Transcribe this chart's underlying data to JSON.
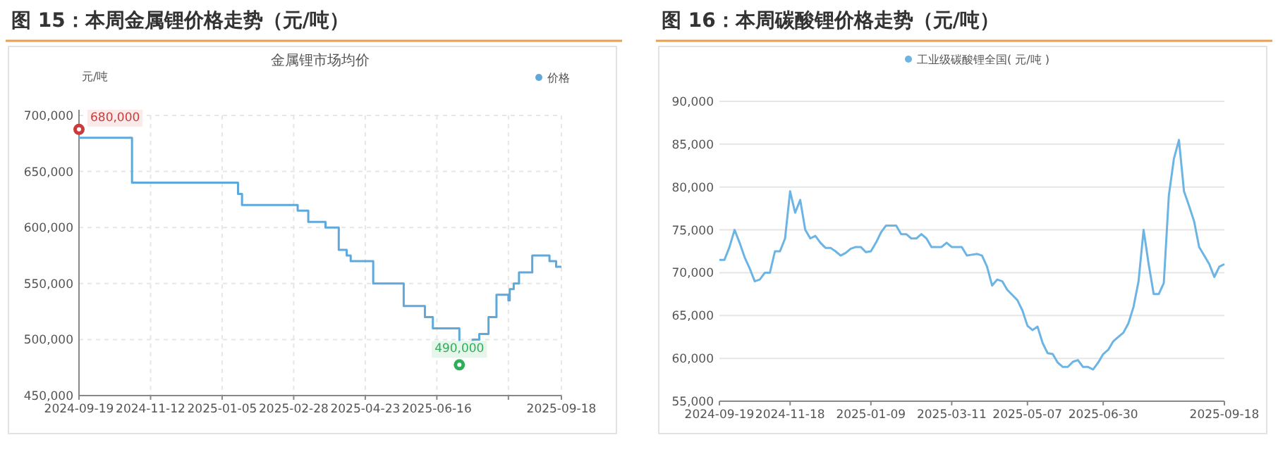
{
  "chart_data": [
    {
      "type": "step",
      "title": "图 15：本周金属锂价格走势（元/吨）",
      "subtitle": "金属锂市场均价",
      "ylabel": "元/吨",
      "legend": "top right",
      "grid": true,
      "xlim": [
        "2024-09-19",
        "2025-09-18"
      ],
      "xticks": [
        "2024-09-19",
        "2024-11-12",
        "2025-01-05",
        "2025-02-28",
        "2025-04-23",
        "2025-06-16",
        {
          "value": "2025-08-09",
          "label": null
        },
        "2025-09-18"
      ],
      "ylim": [
        450000,
        700000
      ],
      "yticks": [
        {
          "value": 450000,
          "label": "450,000"
        },
        {
          "value": 500000,
          "label": "500,000"
        },
        {
          "value": 550000,
          "label": "550,000"
        },
        {
          "value": 600000,
          "label": "600,000"
        },
        {
          "value": 650000,
          "label": "650,000"
        },
        {
          "value": 700000,
          "label": "700,000"
        }
      ],
      "annotations": [
        {
          "text": "680,000",
          "x": "2024-09-19",
          "y": 680000
        },
        {
          "text": "490,000",
          "x": "2025-07-03",
          "y": 490000
        }
      ],
      "series": [
        {
          "name": "价格",
          "color": "#5fa8dc",
          "x": [
            "2024-09-19",
            "2024-10-29",
            "2025-01-17",
            "2025-01-20",
            "2025-03-03",
            "2025-03-11",
            "2025-03-24",
            "2025-04-03",
            "2025-04-09",
            "2025-04-12",
            "2025-04-29",
            "2025-05-22",
            "2025-06-07",
            "2025-06-13",
            "2025-07-03",
            "2025-07-13",
            "2025-07-18",
            "2025-07-25",
            "2025-07-31",
            "2025-08-09",
            "2025-08-10",
            "2025-08-13",
            "2025-08-17",
            "2025-08-27",
            "2025-09-09",
            "2025-09-14",
            "2025-09-18"
          ],
          "values": [
            680000,
            640000,
            630000,
            620000,
            615000,
            605000,
            600000,
            580000,
            575000,
            570000,
            550000,
            530000,
            520000,
            510000,
            490000,
            500000,
            505000,
            520000,
            540000,
            535000,
            545000,
            550000,
            560000,
            575000,
            570000,
            565000,
            565000
          ]
        }
      ]
    },
    {
      "type": "line",
      "title": "图 16：本周碳酸锂价格走势（元/吨）",
      "legend": "top",
      "grid": "y",
      "categories": [
        "2024-09-19",
        null,
        null,
        null,
        null,
        null,
        null,
        null,
        null,
        null,
        null,
        null,
        null,
        null,
        "2024-11-18",
        null,
        null,
        null,
        null,
        null,
        null,
        null,
        null,
        null,
        null,
        null,
        null,
        null,
        null,
        null,
        "2025-01-09",
        null,
        null,
        null,
        null,
        null,
        null,
        null,
        null,
        null,
        null,
        null,
        null,
        null,
        null,
        null,
        "2025-03-11",
        null,
        null,
        null,
        null,
        null,
        null,
        null,
        null,
        null,
        null,
        null,
        null,
        null,
        null,
        "2025-05-07",
        null,
        null,
        null,
        null,
        null,
        null,
        null,
        null,
        null,
        null,
        null,
        null,
        null,
        null,
        "2025-06-30",
        null,
        null,
        null,
        null,
        null,
        null,
        null,
        null,
        null,
        null,
        null,
        null,
        null,
        null,
        null,
        null,
        null,
        null,
        null,
        null,
        null,
        null,
        null,
        "2025-09-18"
      ],
      "ylim": [
        55000,
        90000
      ],
      "yticks": [
        {
          "value": 55000,
          "label": "55,000"
        },
        {
          "value": 60000,
          "label": "60,000"
        },
        {
          "value": 65000,
          "label": "65,000"
        },
        {
          "value": 70000,
          "label": "70,000"
        },
        {
          "value": 75000,
          "label": "75,000"
        },
        {
          "value": 80000,
          "label": "80,000"
        },
        {
          "value": 85000,
          "label": "85,000"
        },
        {
          "value": 90000,
          "label": "90,000"
        }
      ],
      "series": [
        {
          "name": "工业级碳酸锂全国( 元/吨 )",
          "color": "#6cb4e4",
          "values": [
            71500,
            71500,
            73000,
            75000,
            73500,
            71800,
            70500,
            69000,
            69200,
            70000,
            70000,
            72500,
            72500,
            74000,
            79500,
            77000,
            78500,
            75000,
            74000,
            74300,
            73500,
            72900,
            72900,
            72500,
            72000,
            72300,
            72800,
            73000,
            73000,
            72400,
            72500,
            73500,
            74700,
            75500,
            75500,
            75500,
            74500,
            74500,
            74000,
            74000,
            74500,
            74000,
            73000,
            73000,
            73000,
            73500,
            73000,
            73000,
            73000,
            72000,
            72100,
            72200,
            72000,
            70700,
            68500,
            69200,
            69000,
            68000,
            67400,
            66800,
            65600,
            63800,
            63300,
            63700,
            61800,
            60600,
            60500,
            59500,
            59000,
            59000,
            59600,
            59800,
            59000,
            59000,
            58700,
            59500,
            60500,
            61000,
            62000,
            62500,
            63000,
            64100,
            66000,
            69000,
            75000,
            71000,
            67500,
            67500,
            68800,
            79000,
            83300,
            85500,
            79500,
            77800,
            76000,
            73000,
            72000,
            71000,
            69500,
            70700,
            71000
          ]
        }
      ]
    }
  ]
}
